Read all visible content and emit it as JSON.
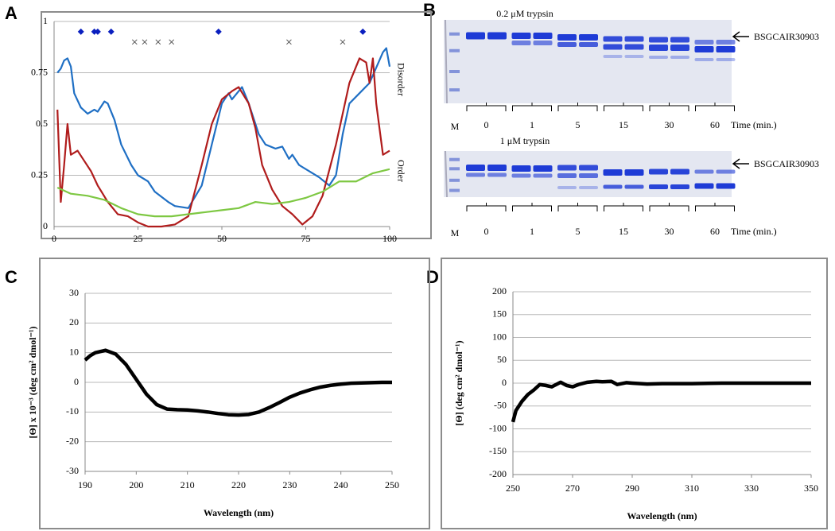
{
  "chart_data": [
    {
      "type": "line",
      "panel": "A",
      "xlim": [
        0,
        100
      ],
      "xticks": [
        0,
        25,
        50,
        75,
        100
      ],
      "ylim": [
        0,
        1
      ],
      "yticks": [
        0,
        0.25,
        0.5,
        0.75,
        1
      ],
      "grid": true,
      "annotations": [
        "Disorder",
        "Order"
      ],
      "series": [
        {
          "color": "#1f6fc4",
          "x": [
            1,
            2,
            3,
            4,
            5,
            6,
            8,
            10,
            12,
            13,
            15,
            16,
            18,
            20,
            23,
            25,
            28,
            30,
            34,
            36,
            40,
            44,
            47,
            50,
            52,
            53,
            56,
            58,
            61,
            63,
            66,
            68,
            70,
            71,
            73,
            76,
            79,
            82,
            84,
            86,
            88,
            91,
            94,
            98,
            99,
            100
          ],
          "values": [
            0.75,
            0.77,
            0.81,
            0.82,
            0.78,
            0.65,
            0.58,
            0.55,
            0.57,
            0.56,
            0.61,
            0.6,
            0.52,
            0.4,
            0.3,
            0.25,
            0.22,
            0.17,
            0.12,
            0.1,
            0.09,
            0.2,
            0.4,
            0.6,
            0.65,
            0.62,
            0.68,
            0.6,
            0.45,
            0.4,
            0.38,
            0.39,
            0.33,
            0.35,
            0.3,
            0.27,
            0.24,
            0.2,
            0.25,
            0.45,
            0.6,
            0.65,
            0.7,
            0.85,
            0.87,
            0.78
          ]
        },
        {
          "color": "#b01c1c",
          "x": [
            1,
            2,
            3,
            4,
            5,
            7,
            9,
            11,
            13,
            16,
            19,
            22,
            25,
            28,
            32,
            36,
            40,
            44,
            47,
            50,
            53,
            55,
            58,
            60,
            62,
            65,
            68,
            71,
            74,
            77,
            80,
            84,
            88,
            91,
            93,
            94,
            95,
            96,
            98,
            100
          ],
          "values": [
            0.57,
            0.12,
            0.3,
            0.5,
            0.35,
            0.37,
            0.32,
            0.27,
            0.2,
            0.12,
            0.06,
            0.05,
            0.02,
            0,
            0,
            0.01,
            0.05,
            0.3,
            0.5,
            0.62,
            0.66,
            0.68,
            0.6,
            0.48,
            0.3,
            0.18,
            0.1,
            0.06,
            0.01,
            0.05,
            0.15,
            0.4,
            0.7,
            0.82,
            0.8,
            0.7,
            0.82,
            0.6,
            0.35,
            0.37
          ]
        },
        {
          "color": "#7ec843",
          "x": [
            1,
            5,
            10,
            15,
            20,
            25,
            30,
            35,
            40,
            45,
            50,
            55,
            60,
            65,
            70,
            75,
            80,
            85,
            90,
            95,
            100
          ],
          "values": [
            0.19,
            0.16,
            0.15,
            0.13,
            0.09,
            0.06,
            0.05,
            0.05,
            0.06,
            0.07,
            0.08,
            0.09,
            0.12,
            0.11,
            0.12,
            0.14,
            0.17,
            0.22,
            0.22,
            0.26,
            0.28
          ]
        },
        {
          "color": "#0a1fbf",
          "marker": "diamond",
          "x": [
            8,
            12,
            13,
            17,
            49,
            92
          ],
          "values": [
            0.95,
            0.95,
            0.95,
            0.95,
            0.95,
            0.95
          ]
        },
        {
          "color": "#555555",
          "marker": "x",
          "x": [
            24,
            27,
            31,
            35,
            70,
            86
          ],
          "values": [
            0.9,
            0.9,
            0.9,
            0.9,
            0.9,
            0.9
          ]
        }
      ]
    },
    {
      "type": "line",
      "panel": "C",
      "xlabel": "Wavelength (nm)",
      "ylabel": "[Θ] x 10⁻³ (deg cm² dmol⁻¹)",
      "xlim": [
        190,
        250
      ],
      "xticks": [
        190,
        200,
        210,
        220,
        230,
        240,
        250
      ],
      "ylim": [
        -30,
        30
      ],
      "yticks": [
        -30,
        -20,
        -10,
        0,
        10,
        20,
        30
      ],
      "grid": true,
      "series": [
        {
          "color": "#000000",
          "x": [
            190,
            191,
            192,
            194,
            196,
            198,
            200,
            202,
            204,
            206,
            208,
            210,
            212,
            214,
            216,
            218,
            220,
            222,
            224,
            226,
            228,
            230,
            232,
            234,
            236,
            238,
            240,
            242,
            244,
            246,
            248,
            250
          ],
          "values": [
            7.5,
            9,
            10,
            10.8,
            9.5,
            6,
            1,
            -4,
            -7.5,
            -9,
            -9.2,
            -9.3,
            -9.6,
            -10,
            -10.5,
            -10.9,
            -11,
            -10.8,
            -10,
            -8.5,
            -6.8,
            -5,
            -3.6,
            -2.5,
            -1.6,
            -1,
            -0.6,
            -0.3,
            -0.2,
            -0.1,
            0,
            0
          ]
        }
      ]
    },
    {
      "type": "line",
      "panel": "D",
      "xlabel": "Wavelength (nm)",
      "ylabel": "[Θ] (deg cm² dmol⁻¹)",
      "xlim": [
        250,
        350
      ],
      "xticks": [
        250,
        270,
        290,
        310,
        330,
        350
      ],
      "ylim": [
        -200,
        200
      ],
      "yticks": [
        -200,
        -150,
        -100,
        -50,
        0,
        50,
        100,
        150,
        200
      ],
      "grid": true,
      "series": [
        {
          "color": "#000000",
          "x": [
            250,
            251,
            253,
            255,
            257,
            259,
            261,
            263,
            266,
            268,
            270,
            272,
            275,
            278,
            280,
            283,
            285,
            288,
            290,
            295,
            300,
            310,
            320,
            330,
            340,
            350
          ],
          "values": [
            -85,
            -60,
            -40,
            -25,
            -15,
            -3,
            -5,
            -8,
            2,
            -5,
            -8,
            -3,
            2,
            4,
            3,
            4,
            -3,
            1,
            0,
            -2,
            -1,
            -1,
            0,
            0,
            0,
            0
          ]
        }
      ]
    }
  ],
  "gel_panel": {
    "panel": "B",
    "gels": [
      {
        "title": "0.2 μM trypsin",
        "protein_label": "BSGCAIR30903",
        "marker_lane": "M",
        "time_points": [
          "0",
          "1",
          "5",
          "15",
          "30",
          "60"
        ],
        "time_label": "Time (min.)"
      },
      {
        "title": "1 μM trypsin",
        "protein_label": "BSGCAIR30903",
        "marker_lane": "M",
        "time_points": [
          "0",
          "1",
          "5",
          "15",
          "30",
          "60"
        ],
        "time_label": "Time (min.)"
      }
    ]
  }
}
